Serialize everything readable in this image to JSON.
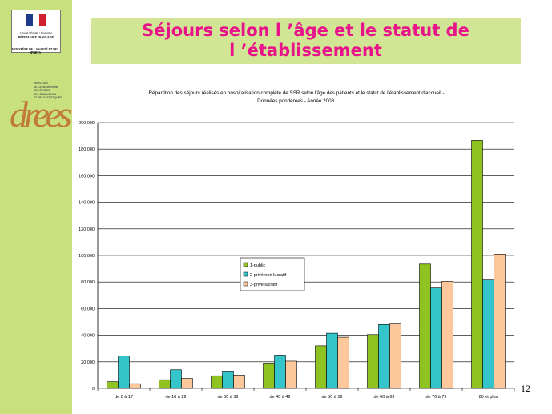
{
  "sidebar": {
    "gov_logo_text": [
      "Liberté • Égalité • Fraternité",
      "RÉPUBLIQUE FRANÇAISE"
    ],
    "ministere": "MINISTÈRE DE LA SANTÉ ET DES SPORTS",
    "drees_word": "drees",
    "drees_lines": [
      "DIRECTION",
      "DE LA RECHERCHE",
      "DES ÉTUDES",
      "DE L'ÉVALUATION",
      "ET DES STATISTIQUES"
    ]
  },
  "slide": {
    "title_line1": "Séjours selon l ’âge et le statut de",
    "title_line2": "l ’établissement",
    "page_number": "12"
  },
  "colors": {
    "sidebar": "#c8e07e",
    "title_box": "#d2e594",
    "title_text": "#e8128a",
    "public": "#8fc31f",
    "prive_non_lucratif": "#33c5c9",
    "prive_lucratif": "#fcc89b"
  },
  "chart_data": {
    "type": "bar",
    "title": "Répartition des séjours réalisés en hospitalisation complète de SSR selon l'âge des patients et le statut de l'établissement d'accueil -",
    "subtitle": "Données pondérées - Année 2008.",
    "categories": [
      "de 0 à 17",
      "de 18 à 29",
      "de 30 à 39",
      "de 40 à 49",
      "de 50 à 59",
      "de 60 à 69",
      "de 70 à 79",
      "80 et plus"
    ],
    "series": [
      {
        "name": "1-public",
        "color": "#8fc31f",
        "values": [
          5000,
          6500,
          9500,
          19000,
          32000,
          40500,
          93500,
          186500
        ]
      },
      {
        "name": "2-privé non lucratif",
        "color": "#33c5c9",
        "values": [
          24500,
          14000,
          13000,
          25000,
          41500,
          48000,
          75500,
          81500
        ]
      },
      {
        "name": "3-privé lucratif",
        "color": "#fcc89b",
        "values": [
          3500,
          7500,
          10000,
          20500,
          38500,
          49000,
          80500,
          101000
        ]
      }
    ],
    "ylim": [
      0,
      200000
    ],
    "yticks": [
      0,
      20000,
      40000,
      60000,
      80000,
      100000,
      120000,
      140000,
      160000,
      180000,
      200000
    ],
    "ytick_labels": [
      "0",
      "20 000",
      "40 000",
      "60 000",
      "80 000",
      "100 000",
      "120 000",
      "140 000",
      "160 000",
      "180 000",
      "200 000"
    ],
    "grid": true,
    "legend_position": "center"
  }
}
